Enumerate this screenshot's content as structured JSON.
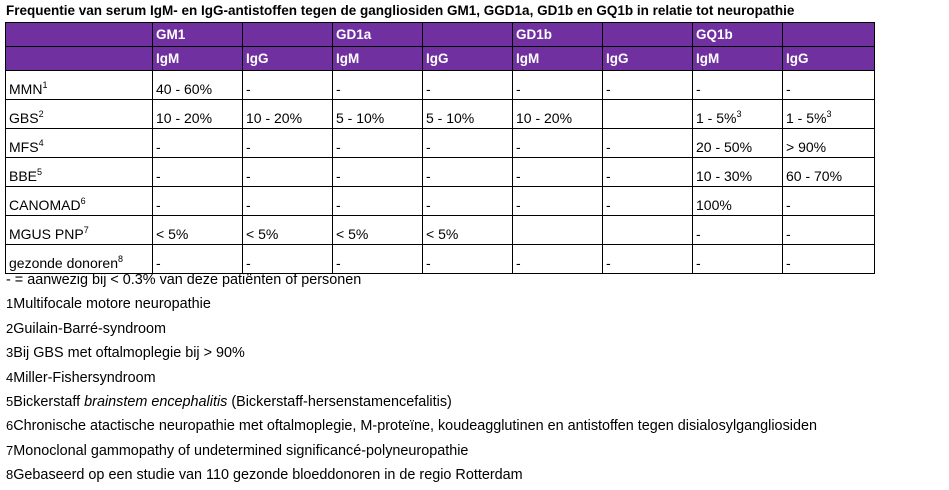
{
  "title": "Frequentie van serum IgM- en IgG-antistoffen tegen de gangliosiden GM1, GGD1a, GD1b en GQ1b in relatie tot neuropathie",
  "table": {
    "ganglioside_headers": [
      "GM1",
      "",
      "GD1a",
      "",
      "GD1b",
      "",
      "GQ1b",
      ""
    ],
    "antibody_headers": [
      "IgM",
      "IgG",
      "IgM",
      "IgG",
      "IgM",
      "IgG",
      "IgM",
      "IgG"
    ],
    "rows": [
      {
        "label": "MMN",
        "sup": "1",
        "cells": [
          "40 - 60%",
          "-",
          "-",
          "-",
          "-",
          "-",
          "-",
          "-"
        ],
        "cell_sups": [
          "",
          "",
          "",
          "",
          "",
          "",
          "",
          ""
        ]
      },
      {
        "label": "GBS",
        "sup": "2",
        "cells": [
          "10 - 20%",
          "10 - 20%",
          "5 - 10%",
          "5 - 10%",
          "10 - 20%",
          "",
          "1 - 5%",
          "1 - 5%"
        ],
        "cell_sups": [
          "",
          "",
          "",
          "",
          "",
          "",
          "3",
          "3"
        ]
      },
      {
        "label": "MFS",
        "sup": "4",
        "cells": [
          "-",
          "-",
          "-",
          "-",
          "-",
          "-",
          "20 - 50%",
          "> 90%"
        ],
        "cell_sups": [
          "",
          "",
          "",
          "",
          "",
          "",
          "",
          ""
        ]
      },
      {
        "label": "BBE",
        "sup": "5",
        "cells": [
          "-",
          "-",
          "-",
          "-",
          "-",
          "-",
          "10 - 30%",
          "60 - 70%"
        ],
        "cell_sups": [
          "",
          "",
          "",
          "",
          "",
          "",
          "",
          ""
        ]
      },
      {
        "label": "CANOMAD",
        "sup": "6",
        "cells": [
          "-",
          "-",
          "-",
          "-",
          "-",
          "-",
          "100%",
          "-"
        ],
        "cell_sups": [
          "",
          "",
          "",
          "",
          "",
          "",
          "",
          ""
        ]
      },
      {
        "label": "MGUS PNP",
        "sup": "7",
        "cells": [
          "< 5%",
          "< 5%",
          "< 5%",
          "< 5%",
          "",
          "",
          "-",
          "-"
        ],
        "cell_sups": [
          "",
          "",
          "",
          "",
          "",
          "",
          "",
          ""
        ]
      },
      {
        "label": "gezonde donoren",
        "sup": "8",
        "cells": [
          "-",
          "-",
          "-",
          "-",
          "-",
          "-",
          "-",
          "-"
        ],
        "cell_sups": [
          "",
          "",
          "",
          "",
          "",
          "",
          "",
          ""
        ]
      }
    ]
  },
  "notes": {
    "legend": "- = aanwezig bij < 0.3% van deze patiënten of personen",
    "footnotes": [
      {
        "num": "1",
        "text": "Multifocale motore neuropathie"
      },
      {
        "num": "2",
        "text": "Guilain-Barré-syndroom"
      },
      {
        "num": "3",
        "text": "Bij GBS met oftalmoplegie bij > 90%"
      },
      {
        "num": "4",
        "text": "Miller-Fishersyndroom"
      },
      {
        "num": "5",
        "text": "Bickerstaff ",
        "italic": "brainstem encephalitis",
        "after": " (Bickerstaff-hersenstamencefalitis)"
      },
      {
        "num": "6",
        "text": "Chronische atactische neuropathie met oftalmoplegie, M-proteïne, koudeagglutinen en antistoffen tegen disialosylgangliosiden"
      },
      {
        "num": "7",
        "text": "Monoclonal gammopathy of undetermined significancé-polyneuropathie"
      },
      {
        "num": "8",
        "text": "Gebaseerd op een studie van 110 gezonde bloeddonoren in de regio Rotterdam"
      }
    ]
  }
}
